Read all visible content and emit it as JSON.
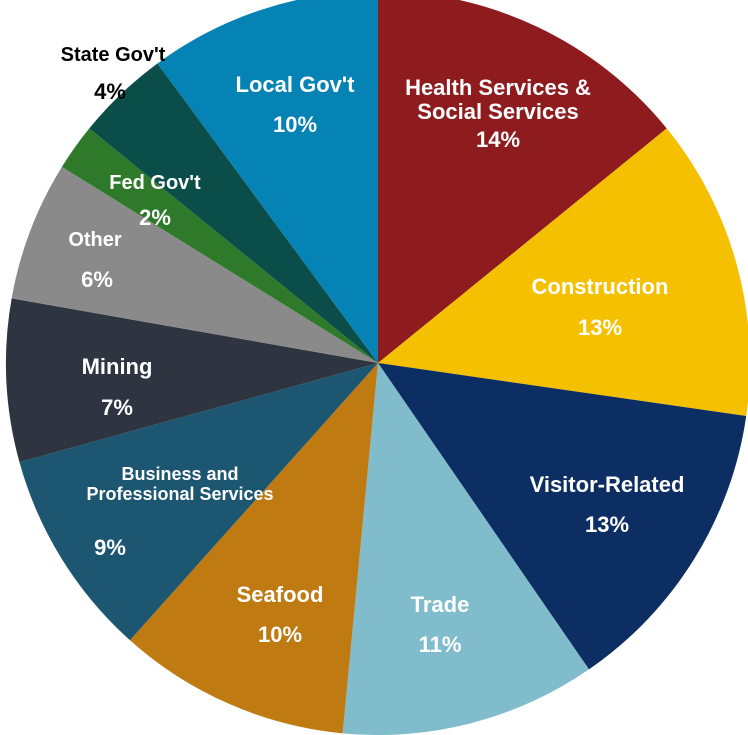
{
  "chart_data": {
    "type": "pie",
    "categories": [
      "Health Services & Social Services",
      "Construction",
      "Visitor-Related",
      "Trade",
      "Seafood",
      "Business and Professional Services",
      "Mining",
      "Other",
      "Fed Gov't",
      "State Gov't",
      "Local Gov't"
    ],
    "values": [
      14,
      13,
      13,
      11,
      10,
      9,
      7,
      6,
      2,
      4,
      10
    ],
    "value_labels": [
      "14%",
      "13%",
      "13%",
      "11%",
      "10%",
      "9%",
      "7%",
      "6%",
      "2%",
      "4%",
      "10%"
    ],
    "colors": [
      "#8e1b1e",
      "#f5c000",
      "#0d2e63",
      "#80bccb",
      "#c07a12",
      "#1c5670",
      "#2e3440",
      "#8a8a8a",
      "#2e7a2a",
      "#0b4d48",
      "#0583b5"
    ]
  }
}
